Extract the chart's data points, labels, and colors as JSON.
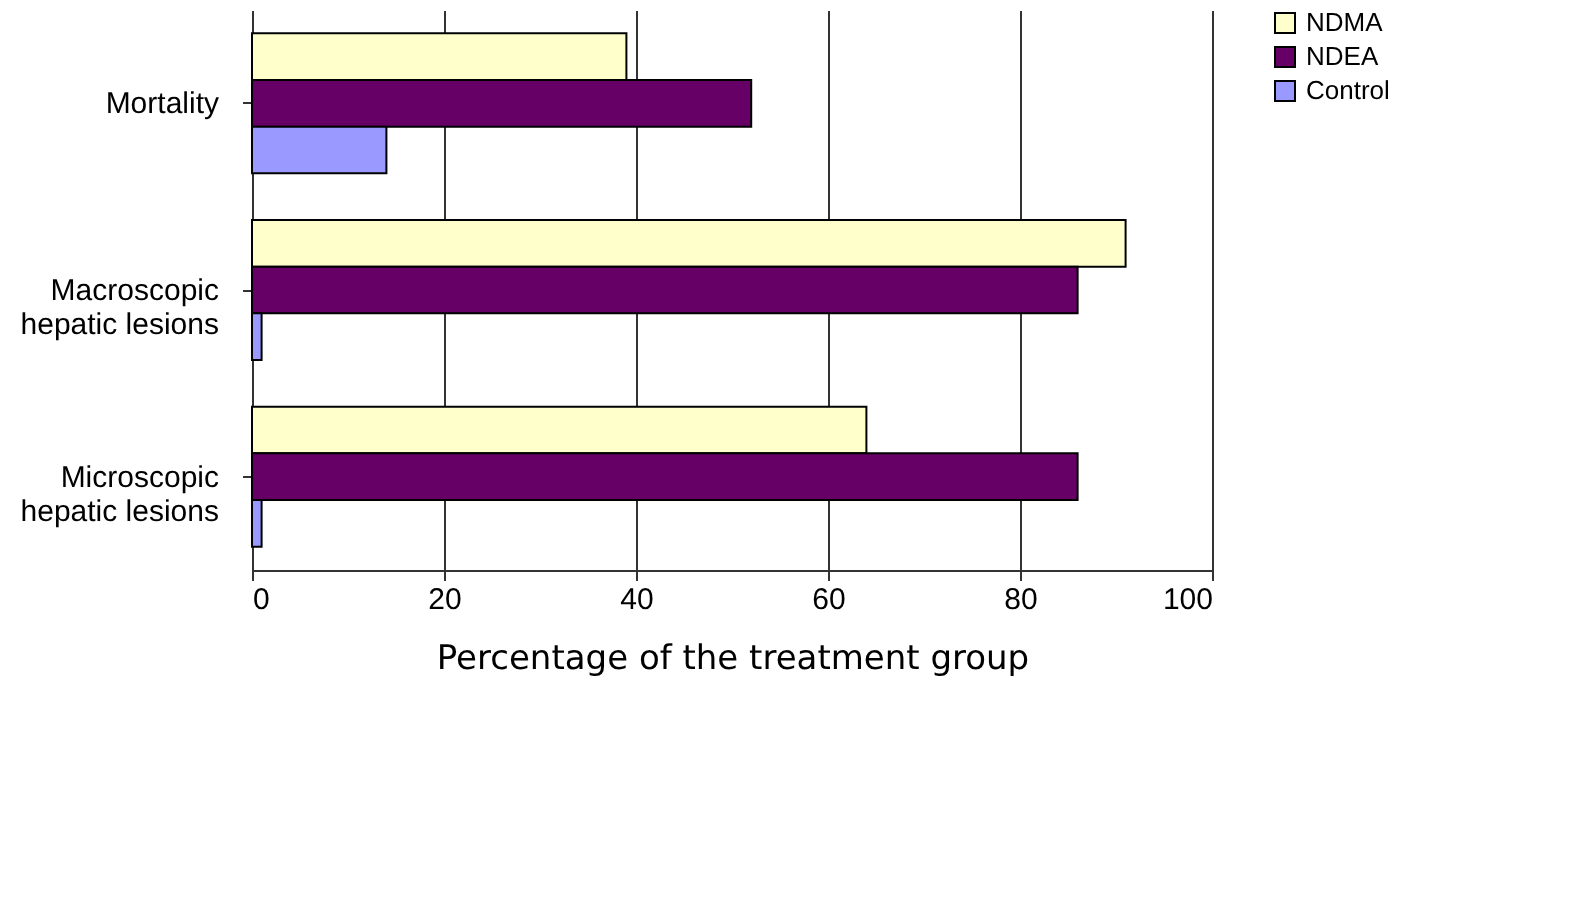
{
  "chart_data": {
    "type": "bar",
    "orientation": "horizontal",
    "xlabel": "Percentage of the treatment group",
    "categories": [
      "Mortality",
      "Macroscopic\nhepatic  lesions",
      "Microscopic\nhepatic  lesions"
    ],
    "series": [
      {
        "name": "NDMA",
        "color": "#ffffcc",
        "values": [
          39,
          91,
          64
        ]
      },
      {
        "name": "NDEA",
        "color": "#660066",
        "values": [
          52,
          86,
          86
        ]
      },
      {
        "name": "Control",
        "color": "#9999ff",
        "values": [
          14,
          1,
          1
        ]
      }
    ],
    "xlim": [
      0,
      100
    ],
    "xticks": [
      0,
      20,
      40,
      60,
      80,
      100
    ],
    "grid": "x",
    "legend": "right"
  }
}
